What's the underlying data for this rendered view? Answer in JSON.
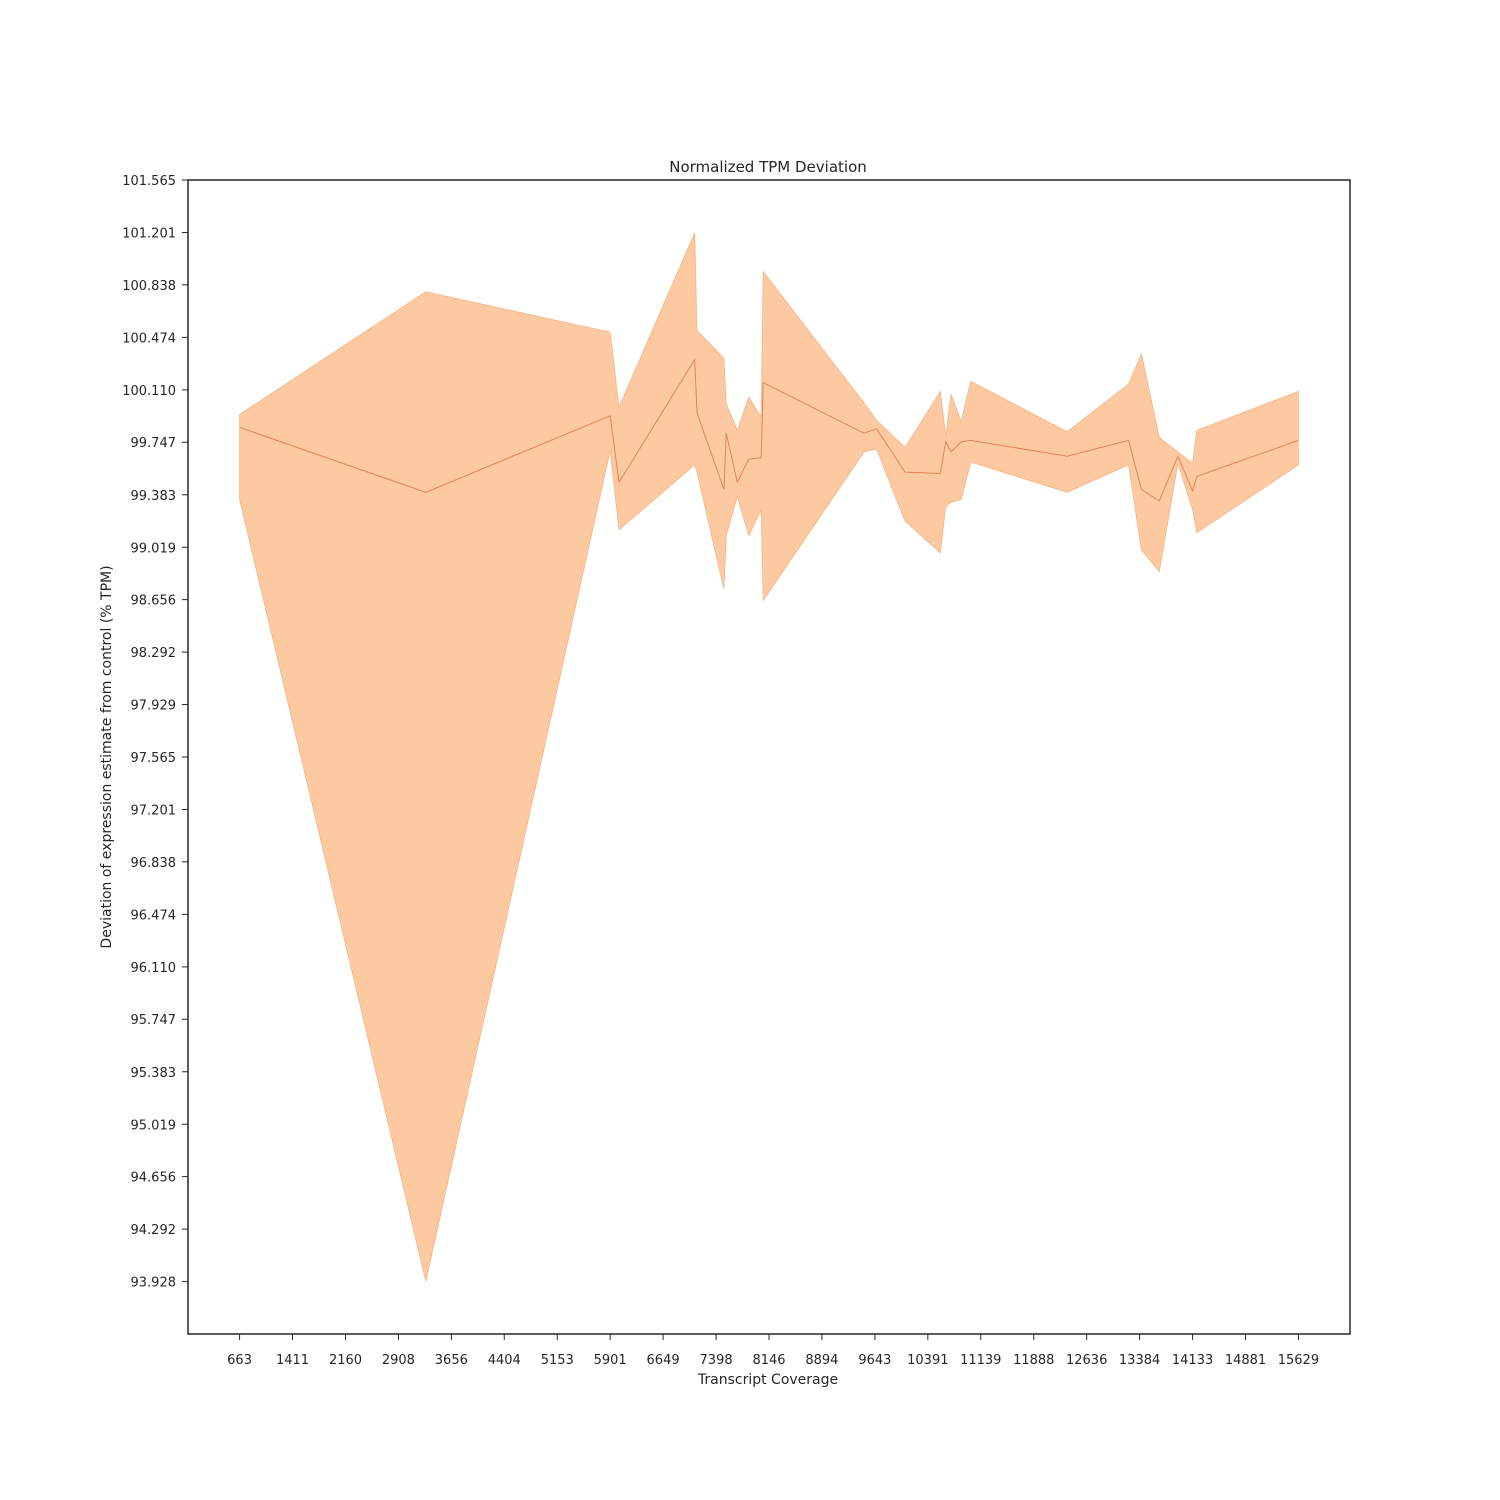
{
  "chart_data": {
    "type": "area",
    "title": "Normalized TPM Deviation",
    "xlabel": "Transcript Coverage",
    "ylabel": "Deviation of expression estimate from control (% TPM)",
    "xlim": [
      -66,
      16358
    ],
    "ylim": [
      93.565,
      101.565
    ],
    "xticks": [
      663,
      1411,
      2160,
      2908,
      3656,
      4404,
      5153,
      5901,
      6649,
      7398,
      8146,
      8894,
      9643,
      10391,
      11139,
      11888,
      12636,
      13384,
      14133,
      14881,
      15629
    ],
    "yticks": [
      93.928,
      94.292,
      94.656,
      95.019,
      95.383,
      95.747,
      96.11,
      96.474,
      96.838,
      97.201,
      97.565,
      97.929,
      98.292,
      98.656,
      99.019,
      99.383,
      99.747,
      100.11,
      100.474,
      100.838,
      101.201,
      101.565
    ],
    "grid": false,
    "colors": {
      "band": "#fdc9a0",
      "line": "#e8825a",
      "axis": "#262626"
    },
    "series": [
      {
        "x": [
          663,
          3295,
          5901,
          6026,
          7096,
          7129,
          7508,
          7543,
          7698,
          7860,
          8036,
          8064,
          9490,
          9666,
          10068,
          10568,
          10643,
          10720,
          10861,
          10998,
          12360,
          13228,
          13409,
          13663,
          13925,
          14133,
          14194,
          15629
        ],
        "mid": [
          99.85,
          99.4,
          99.93,
          99.47,
          100.32,
          99.95,
          99.42,
          99.81,
          99.47,
          99.63,
          99.64,
          100.16,
          99.81,
          99.84,
          99.54,
          99.53,
          99.75,
          99.68,
          99.75,
          99.76,
          99.65,
          99.76,
          99.42,
          99.34,
          99.65,
          99.41,
          99.51,
          99.76
        ],
        "upper": [
          99.94,
          100.79,
          100.51,
          99.99,
          101.2,
          100.52,
          100.33,
          100.01,
          99.83,
          100.06,
          99.92,
          100.93,
          100.02,
          99.9,
          99.71,
          100.1,
          99.79,
          100.08,
          99.89,
          100.17,
          99.82,
          100.15,
          100.36,
          99.78,
          99.68,
          99.6,
          99.83,
          100.1
        ]
      },
      {
        "x": [
          663,
          3295,
          5901,
          6026,
          7096,
          7129,
          7508,
          7543,
          7698,
          7860,
          8036,
          8064,
          9490,
          9666,
          10068,
          10568,
          10643,
          10720,
          10861,
          10998,
          12360,
          13228,
          13409,
          13663,
          13925,
          14133,
          14194,
          15629
        ],
        "lower": [
          99.35,
          93.93,
          99.69,
          99.14,
          99.59,
          99.54,
          98.73,
          99.1,
          99.37,
          99.1,
          99.28,
          98.65,
          99.68,
          99.7,
          99.2,
          98.98,
          99.3,
          99.33,
          99.35,
          99.61,
          99.4,
          99.59,
          99.0,
          98.85,
          99.6,
          99.28,
          99.12,
          99.59
        ]
      }
    ]
  }
}
